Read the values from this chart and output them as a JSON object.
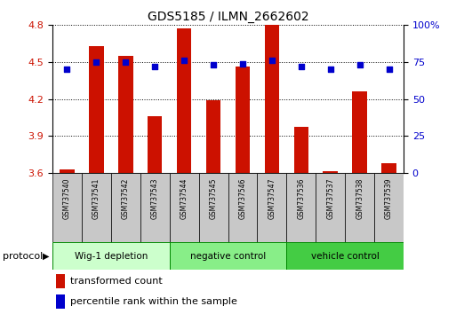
{
  "title": "GDS5185 / ILMN_2662602",
  "samples": [
    "GSM737540",
    "GSM737541",
    "GSM737542",
    "GSM737543",
    "GSM737544",
    "GSM737545",
    "GSM737546",
    "GSM737547",
    "GSM737536",
    "GSM737537",
    "GSM737538",
    "GSM737539"
  ],
  "bar_values": [
    3.63,
    4.63,
    4.55,
    4.06,
    4.77,
    4.19,
    4.46,
    4.8,
    3.97,
    3.61,
    4.26,
    3.68
  ],
  "dot_values": [
    70,
    75,
    75,
    72,
    76,
    73,
    74,
    76,
    72,
    70,
    73,
    70
  ],
  "ylim": [
    3.6,
    4.8
  ],
  "y2lim": [
    0,
    100
  ],
  "yticks": [
    3.6,
    3.9,
    4.2,
    4.5,
    4.8
  ],
  "y2ticks": [
    0,
    25,
    50,
    75,
    100
  ],
  "y2tick_labels": [
    "0",
    "25",
    "50",
    "75",
    "100%"
  ],
  "bar_color": "#cc1100",
  "dot_color": "#0000cc",
  "groups": [
    {
      "label": "Wig-1 depletion",
      "start": 0,
      "end": 4,
      "color": "#ccffcc"
    },
    {
      "label": "negative control",
      "start": 4,
      "end": 8,
      "color": "#88ee88"
    },
    {
      "label": "vehicle control",
      "start": 8,
      "end": 12,
      "color": "#44cc44"
    }
  ],
  "xlabel_area_color": "#c8c8c8",
  "legend_red_label": "transformed count",
  "legend_blue_label": "percentile rank within the sample",
  "protocol_label": "protocol",
  "background_color": "#ffffff"
}
